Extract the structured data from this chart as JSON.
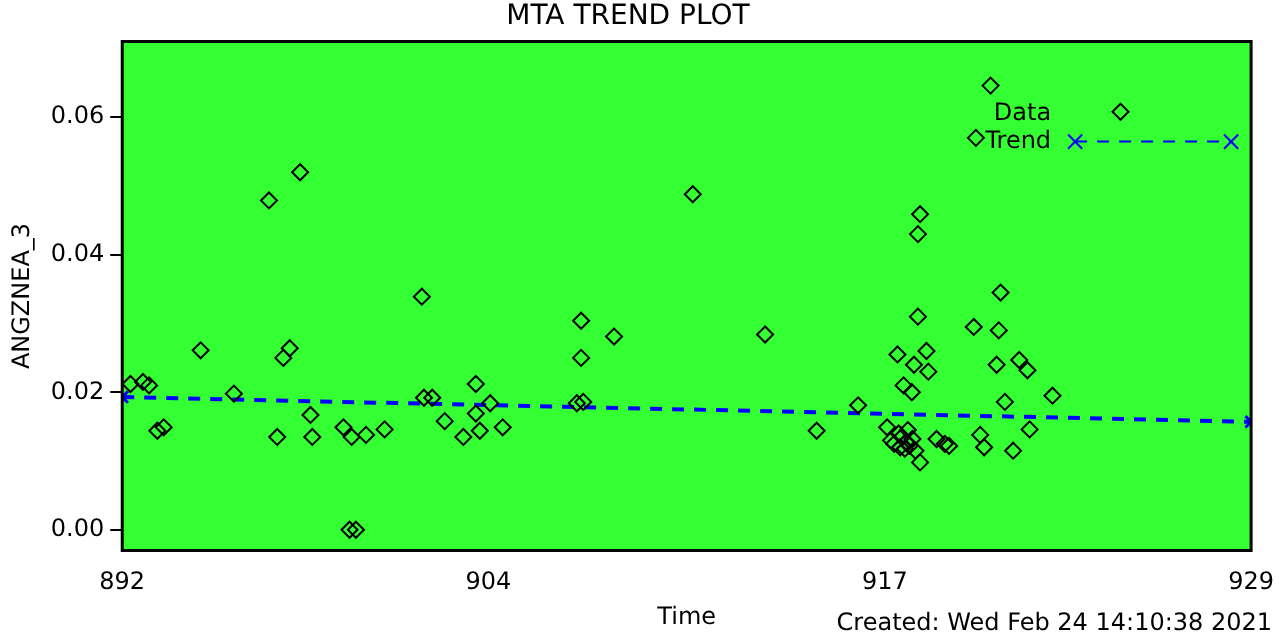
{
  "chart_data": {
    "type": "scatter",
    "title": "MTA TREND PLOT",
    "xlabel": "Time",
    "ylabel": "ANGZNEA_3",
    "annotations": [
      "Created: Wed Feb 24 14:10:38 2021"
    ],
    "xlim": [
      892,
      929
    ],
    "xticks": [
      892,
      904,
      917,
      929
    ],
    "ylim": [
      -0.003,
      0.071
    ],
    "yticks": [
      {
        "value": 0,
        "label": "0.00"
      },
      {
        "value": 0.02,
        "label": "0.02"
      },
      {
        "value": 0.04,
        "label": "0.04"
      },
      {
        "value": 0.06,
        "label": "0.06"
      }
    ],
    "grid": false,
    "legend": "top right",
    "marker": "diamond",
    "series": [
      {
        "name": "Data",
        "color": "#000000",
        "x": [
          892.27,
          892.68,
          892.88,
          893.15,
          893.36,
          894.57,
          895.66,
          896.81,
          897.08,
          897.28,
          897.49,
          897.83,
          898.17,
          898.23,
          899.25,
          899.52,
          899.99,
          899.45,
          899.66,
          900.6,
          901.82,
          901.89,
          902.16,
          902.57,
          903.18,
          903.59,
          903.59,
          903.72,
          904.06,
          904.47,
          907.04,
          907.04,
          906.9,
          907.11,
          908.12,
          910.7,
          913.07,
          914.76,
          916.12,
          917.07,
          917.2,
          917.3,
          917.41,
          917.45,
          917.5,
          917.55,
          917.61,
          917.65,
          917.7,
          917.75,
          917.8,
          917.88,
          917.9,
          917.95,
          918.0,
          918.08,
          918.08,
          918.15,
          918.15,
          918.36,
          918.42,
          918.69,
          918.96,
          919.1,
          919.91,
          919.98,
          920.12,
          920.25,
          920.46,
          920.66,
          920.73,
          920.79,
          920.93,
          921.2,
          921.4,
          921.67,
          921.74,
          922.49,
          924.72
        ],
        "values": [
          0.0212,
          0.0215,
          0.021,
          0.0144,
          0.0149,
          0.0261,
          0.0198,
          0.0479,
          0.0135,
          0.025,
          0.0264,
          0.052,
          0.0167,
          0.0135,
          0.0149,
          0.0135,
          0.0138,
          0.0,
          0.0,
          0.0146,
          0.0339,
          0.0192,
          0.0192,
          0.0158,
          0.0135,
          0.0169,
          0.0212,
          0.0144,
          0.0184,
          0.0149,
          0.0304,
          0.025,
          0.0184,
          0.0186,
          0.0281,
          0.0488,
          0.0284,
          0.0144,
          0.0181,
          0.0149,
          0.013,
          0.0125,
          0.0255,
          0.014,
          0.012,
          0.0135,
          0.021,
          0.0118,
          0.0128,
          0.0145,
          0.0122,
          0.02,
          0.0132,
          0.024,
          0.0115,
          0.031,
          0.043,
          0.0459,
          0.0098,
          0.026,
          0.023,
          0.0132,
          0.0125,
          0.0122,
          0.0295,
          0.057,
          0.0138,
          0.012,
          0.0646,
          0.024,
          0.029,
          0.0345,
          0.0186,
          0.0115,
          0.0247,
          0.0232,
          0.0146,
          0.0195,
          0.0608
        ]
      },
      {
        "name": "Trend",
        "type": "line",
        "color": "#0000ff",
        "line_style": "dashed",
        "marker": "cross",
        "x": [
          892,
          929
        ],
        "values": [
          0.0193,
          0.0157
        ]
      }
    ]
  }
}
